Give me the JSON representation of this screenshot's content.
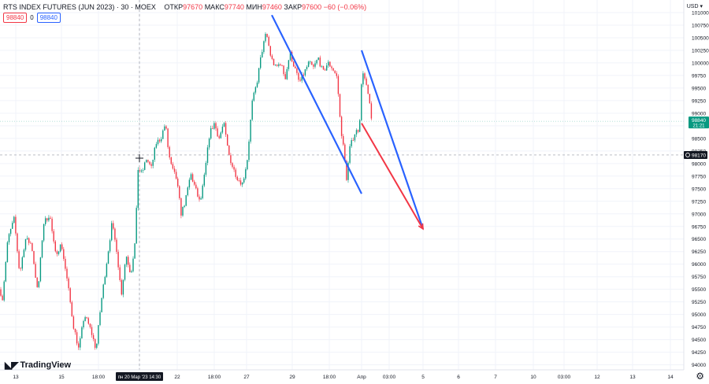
{
  "header": {
    "title": "RTS INDEX FUTURES (JUN 2023) · 30 · MOEX",
    "ohlc": [
      {
        "k": "ОТКР",
        "v": "97670"
      },
      {
        "k": "МАКС",
        "v": "97740"
      },
      {
        "k": "МИН",
        "v": "97460"
      },
      {
        "k": "ЗАКР",
        "v": "97600"
      },
      {
        "k": "",
        "v": "−60 (−0.06%)"
      }
    ],
    "sell_price": "98840",
    "spread": "0",
    "buy_price": "98840",
    "currency": "USD ▾"
  },
  "branding": {
    "logo_text": "TradingView"
  },
  "colors": {
    "up": "#089981",
    "down": "#f23645",
    "channel": "#2962ff",
    "arrow": "#f23645"
  },
  "chart_data": {
    "type": "candlestick",
    "y_axis": {
      "min": 93900,
      "max": 101250,
      "ticks": [
        101000,
        100750,
        100500,
        100250,
        100000,
        99750,
        99500,
        99250,
        99000,
        98750,
        98500,
        98250,
        98000,
        97750,
        97500,
        97250,
        97000,
        96750,
        96500,
        96250,
        96000,
        95750,
        95500,
        95250,
        95000,
        94750,
        94500,
        94250,
        94000
      ]
    },
    "x_axis_labels": [
      "13",
      "15",
      "18:00",
      "пн 20 Мар '23 14:30",
      "22",
      "18:00",
      "27",
      "29",
      "18:00",
      "Апр",
      "03:00",
      "5",
      "6",
      "7",
      "10",
      "03:00",
      "12",
      "13",
      "14"
    ],
    "price_labels": [
      {
        "value": 98840,
        "text": "98840",
        "sub": "21:21",
        "color": "#089981"
      },
      {
        "value": 98170,
        "text": "98170",
        "color": "#131722"
      }
    ],
    "crosshair_price": 98170,
    "keypoints": [
      [
        0,
        95500
      ],
      [
        3,
        95300
      ],
      [
        10,
        96500
      ],
      [
        18,
        96900
      ],
      [
        25,
        95800
      ],
      [
        32,
        96500
      ],
      [
        40,
        96400
      ],
      [
        48,
        95400
      ],
      [
        55,
        96800
      ],
      [
        63,
        97000
      ],
      [
        70,
        96200
      ],
      [
        78,
        96400
      ],
      [
        86,
        95600
      ],
      [
        93,
        94800
      ],
      [
        100,
        94300
      ],
      [
        107,
        95000
      ],
      [
        115,
        94700
      ],
      [
        122,
        94300
      ],
      [
        128,
        95200
      ],
      [
        135,
        96000
      ],
      [
        142,
        96800
      ],
      [
        148,
        96300
      ],
      [
        154,
        95400
      ],
      [
        160,
        96200
      ],
      [
        166,
        95800
      ],
      [
        172,
        96500
      ],
      [
        175,
        97900
      ],
      [
        180,
        97800
      ],
      [
        186,
        98100
      ],
      [
        192,
        97900
      ],
      [
        198,
        98400
      ],
      [
        204,
        98500
      ],
      [
        210,
        98800
      ],
      [
        214,
        98200
      ],
      [
        218,
        97900
      ],
      [
        224,
        97700
      ],
      [
        230,
        97000
      ],
      [
        236,
        97300
      ],
      [
        242,
        97800
      ],
      [
        248,
        97500
      ],
      [
        254,
        97200
      ],
      [
        260,
        97800
      ],
      [
        266,
        98600
      ],
      [
        272,
        98800
      ],
      [
        278,
        98500
      ],
      [
        284,
        98800
      ],
      [
        290,
        98200
      ],
      [
        296,
        97900
      ],
      [
        302,
        97700
      ],
      [
        308,
        97600
      ],
      [
        314,
        98100
      ],
      [
        320,
        99200
      ],
      [
        326,
        99600
      ],
      [
        332,
        100200
      ],
      [
        338,
        100600
      ],
      [
        344,
        100100
      ],
      [
        350,
        99900
      ],
      [
        356,
        100000
      ],
      [
        362,
        99700
      ],
      [
        368,
        100200
      ],
      [
        374,
        99900
      ],
      [
        380,
        99600
      ],
      [
        386,
        99800
      ],
      [
        392,
        100000
      ],
      [
        398,
        99900
      ],
      [
        404,
        100100
      ],
      [
        410,
        99800
      ],
      [
        416,
        100000
      ],
      [
        422,
        99900
      ],
      [
        428,
        99700
      ],
      [
        432,
        98800
      ],
      [
        436,
        98300
      ],
      [
        440,
        97700
      ],
      [
        444,
        98300
      ],
      [
        450,
        98600
      ],
      [
        456,
        98700
      ],
      [
        460,
        99900
      ],
      [
        464,
        99600
      ],
      [
        468,
        99300
      ],
      [
        472,
        98800
      ]
    ],
    "channel_lines": [
      {
        "from": [
          "28",
          100950
        ],
        "to": [
          "Апр",
          97400
        ]
      },
      {
        "from": [
          "Апр",
          100250
        ],
        "to": [
          "5",
          96700
        ]
      }
    ],
    "arrow": {
      "from": [
        "Апр",
        98800
      ],
      "to": [
        "5",
        96700
      ]
    }
  }
}
